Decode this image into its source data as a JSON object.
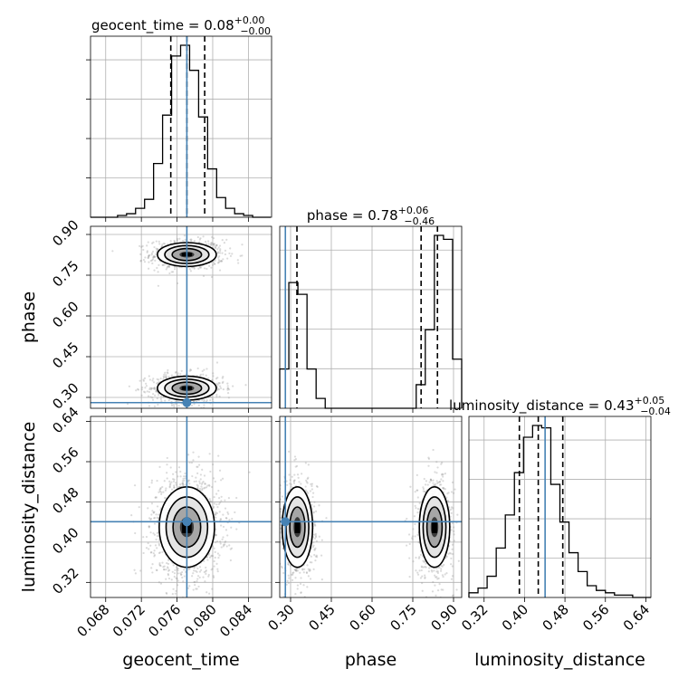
{
  "chart_data": {
    "type": "corner",
    "parameters": [
      {
        "key": "geocent_time",
        "label": "geocent_time",
        "title_prefix": "geocent_time = 0.08",
        "title_sup": "+0.00",
        "title_sub": "−0.00",
        "range": [
          0.0663,
          0.0866
        ],
        "ticks": [
          0.068,
          0.072,
          0.076,
          0.08,
          0.084
        ],
        "tick_labels": [
          "0.068",
          "0.072",
          "0.076",
          "0.080",
          "0.084"
        ],
        "truth": 0.0771,
        "median": 0.0771,
        "q16": 0.0753,
        "q84": 0.0791,
        "hist_start": 0.0663,
        "hist_step": 0.00101,
        "hist_counts": [
          0,
          0,
          0,
          1,
          2,
          5,
          10,
          30,
          57,
          90,
          96,
          82,
          56,
          27,
          11,
          5,
          2,
          1,
          0,
          0
        ]
      },
      {
        "key": "phase",
        "label": "phase",
        "title_prefix": "phase = 0.78",
        "title_sup": "+0.06",
        "title_sub": "−0.46",
        "range": [
          0.26,
          0.93
        ],
        "ticks": [
          0.3,
          0.45,
          0.6,
          0.75,
          0.9
        ],
        "tick_labels": [
          "0.30",
          "0.45",
          "0.60",
          "0.75",
          "0.90"
        ],
        "truth": 0.2808,
        "median": 0.7806,
        "q16": 0.3234,
        "q84": 0.8408,
        "hist_start": 0.26,
        "hist_step": 0.0335,
        "hist_counts": [
          20,
          64,
          58,
          20,
          5,
          0,
          0,
          0,
          0,
          0,
          0,
          0,
          0,
          0,
          0,
          12,
          40,
          88,
          86,
          25
        ]
      },
      {
        "key": "luminosity_distance",
        "label": "luminosity_distance",
        "title_prefix": "luminosity_distance = 0.43",
        "title_sup": "+0.05",
        "title_sub": "−0.04",
        "range": [
          0.29,
          0.65
        ],
        "ticks": [
          0.32,
          0.4,
          0.48,
          0.56,
          0.64
        ],
        "tick_labels": [
          "0.32",
          "0.40",
          "0.48",
          "0.56",
          "0.64"
        ],
        "truth": 0.4407,
        "median": 0.4272,
        "q16": 0.3898,
        "q84": 0.4757,
        "hist_start": 0.29,
        "hist_step": 0.018,
        "hist_counts": [
          2,
          4,
          9,
          21,
          35,
          53,
          68,
          73,
          72,
          48,
          32,
          19,
          11,
          5,
          3,
          2,
          1,
          1,
          0,
          0
        ]
      }
    ],
    "panels_2d": [
      {
        "x": "geocent_time",
        "y": "phase",
        "truth": [
          0.0771,
          0.2808
        ],
        "modes": [
          {
            "center": [
              0.0771,
              0.826
            ],
            "spread": [
              0.00165,
              0.022
            ],
            "weight": 0.5
          },
          {
            "center": [
              0.0771,
              0.334
            ],
            "spread": [
              0.00165,
              0.022
            ],
            "weight": 0.5
          }
        ]
      },
      {
        "x": "geocent_time",
        "y": "luminosity_distance",
        "truth": [
          0.0771,
          0.4407
        ],
        "modes": [
          {
            "center": [
              0.0771,
              0.43
            ],
            "spread": [
              0.00155,
              0.04
            ],
            "weight": 1
          }
        ]
      },
      {
        "x": "phase",
        "y": "luminosity_distance",
        "truth": [
          0.2808,
          0.4407
        ],
        "modes": [
          {
            "center": [
              0.325,
              0.43
            ],
            "spread": [
              0.028,
              0.04
            ],
            "weight": 0.5
          },
          {
            "center": [
              0.83,
              0.43
            ],
            "spread": [
              0.028,
              0.04
            ],
            "weight": 0.5
          }
        ]
      }
    ],
    "colors": {
      "truth": "#4682b4",
      "hist": "#000000",
      "grid": "#b0b0b0",
      "scatter": "#999999"
    },
    "grid": true
  }
}
